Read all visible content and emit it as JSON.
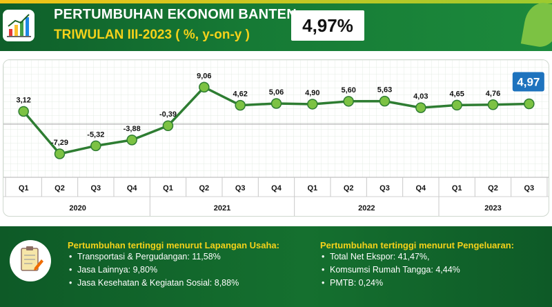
{
  "header": {
    "title_line1": "PERTUMBUHAN EKONOMI BANTEN",
    "title_line2": "TRIWULAN III-2023 ( %, y-on-y )",
    "headline_value": "4,97%"
  },
  "colors": {
    "header_green": "#167a35",
    "accent_yellow": "#f5d21a",
    "line_green": "#2e7d32",
    "marker_green": "#7cc243",
    "highlight_blue": "#1e73be"
  },
  "icons": {
    "header_icon": "chart-growth-icon",
    "panel_icon": "clipboard-notes-icon",
    "decor": "leaf-icon"
  },
  "chart_data": {
    "type": "line",
    "categories": [
      "Q1",
      "Q2",
      "Q3",
      "Q4",
      "Q1",
      "Q2",
      "Q3",
      "Q4",
      "Q1",
      "Q2",
      "Q3",
      "Q4",
      "Q1",
      "Q2",
      "Q3"
    ],
    "years": [
      {
        "label": "2020",
        "span": 4
      },
      {
        "label": "2021",
        "span": 4
      },
      {
        "label": "2022",
        "span": 4
      },
      {
        "label": "2023",
        "span": 3
      }
    ],
    "values": [
      3.12,
      -7.29,
      -5.32,
      -3.88,
      -0.39,
      9.06,
      4.62,
      5.06,
      4.9,
      5.6,
      5.63,
      4.03,
      4.65,
      4.76,
      4.97
    ],
    "value_labels": [
      "3,12",
      "-7,29",
      "-5,32",
      "-3,88",
      "-0,39",
      "9,06",
      "4,62",
      "5,06",
      "4,90",
      "5,60",
      "5,63",
      "4,03",
      "4,65",
      "4,76",
      "4,97"
    ],
    "highlight_index": 14,
    "ylim": [
      -10,
      12
    ],
    "grid": true,
    "legend": "none"
  },
  "notes": {
    "left": {
      "title": "Pertumbuhan tertinggi menurut Lapangan Usaha:",
      "items": [
        "Transportasi & Pergudangan:  11,58%",
        "Jasa Lainnya:  9,80%",
        "Jasa Kesehatan & Kegiatan Sosial:  8,88%"
      ]
    },
    "right": {
      "title": "Pertumbuhan tertinggi menurut Pengeluaran:",
      "items": [
        "Total Net Ekspor:  41,47%,",
        "Komsumsi Rumah Tangga:  4,44%",
        "PMTB:  0,24%"
      ]
    }
  }
}
